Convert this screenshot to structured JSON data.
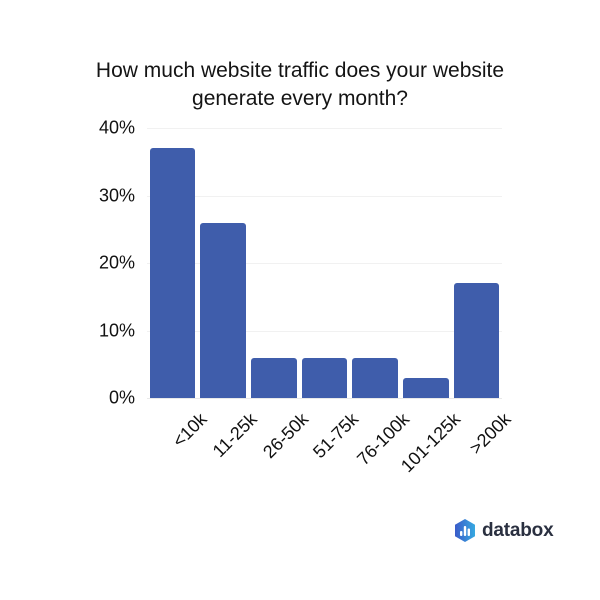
{
  "header": {
    "title_line1": "How much website traffic does your website",
    "title_line2": "generate every month?"
  },
  "chart_data": {
    "type": "bar",
    "title": "How much website traffic does your website generate every month?",
    "categories": [
      "<10k",
      "11-25k",
      "26-50k",
      "51-75k",
      "76-100k",
      "101-125k",
      ">200k"
    ],
    "values": [
      37,
      26,
      6,
      6,
      6,
      3,
      17
    ],
    "unit": "%",
    "xlabel": "",
    "ylabel": "",
    "ylim": [
      0,
      40
    ],
    "yticks": [
      "40%",
      "30%",
      "20%",
      "10%",
      "0%"
    ],
    "grid": true,
    "legend": false,
    "xlabel_rotation_deg": -45,
    "bar_color": "#3f5dab"
  },
  "branding": {
    "logo_text": "databox",
    "logo_icon": "databox-hexagon-chart-icon",
    "icon_gradient_start": "#3a5bc9",
    "icon_gradient_end": "#36a9e1",
    "text_color": "#2a3040"
  }
}
